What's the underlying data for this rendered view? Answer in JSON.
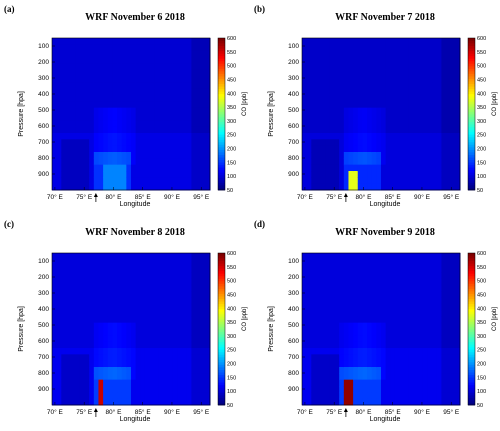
{
  "panels": [
    {
      "letter": "(a)",
      "title": "WRF November 6 2018"
    },
    {
      "letter": "(b)",
      "title": "WRF November 7 2018"
    },
    {
      "letter": "(c)",
      "title": "WRF November 8 2018"
    },
    {
      "letter": "(d)",
      "title": "WRF November 9 2018"
    }
  ],
  "axes": {
    "ylabel": "Pressure [hpa]",
    "xlabel": "Longitude",
    "cblabel": "CO [ppb]"
  },
  "chart_data": [
    {
      "type": "heatmap",
      "title": "WRF November 6 2018",
      "x_ticks": [
        "70° E",
        "75° E",
        "80° E",
        "85° E",
        "90° E",
        "95° E"
      ],
      "x_tick_values": [
        70,
        75,
        80,
        85,
        90,
        95
      ],
      "xlim": [
        69.5,
        96.5
      ],
      "y_ticks": [
        "100",
        "200",
        "300",
        "400",
        "500",
        "600",
        "700",
        "800",
        "900"
      ],
      "y_tick_values": [
        100,
        200,
        300,
        400,
        500,
        600,
        700,
        800,
        900
      ],
      "ylim": [
        1000,
        50
      ],
      "colorbar_ticks": [
        "50",
        "100",
        "150",
        "200",
        "250",
        "300",
        "350",
        "400",
        "450",
        "500",
        "550",
        "600"
      ],
      "clim": [
        50,
        600
      ],
      "colormap": [
        "#00007f",
        "#0000ff",
        "#007fff",
        "#00ffff",
        "#7fff7f",
        "#ffff00",
        "#ff7f00",
        "#ff0000",
        "#7f0000"
      ],
      "marker_arrow_lon": 77,
      "peak": {
        "lon_range": [
          78,
          82
        ],
        "pressure_range": [
          850,
          1000
        ],
        "value_ppb": 190
      },
      "background_ppb": 95
    },
    {
      "type": "heatmap",
      "title": "WRF November 7 2018",
      "x_ticks": [
        "70° E",
        "75° E",
        "80° E",
        "85° E",
        "90° E",
        "95° E"
      ],
      "xlim": [
        69.5,
        96.5
      ],
      "y_ticks": [
        "100",
        "200",
        "300",
        "400",
        "500",
        "600",
        "700",
        "800",
        "900"
      ],
      "ylim": [
        1000,
        50
      ],
      "colorbar_ticks": [
        "50",
        "100",
        "150",
        "200",
        "250",
        "300",
        "350",
        "400",
        "450",
        "500",
        "550",
        "600"
      ],
      "clim": [
        50,
        600
      ],
      "marker_arrow_lon": 77,
      "peak": {
        "lon_range": [
          77.5,
          79
        ],
        "pressure_range": [
          880,
          1000
        ],
        "value_ppb": 380
      },
      "background_ppb": 90
    },
    {
      "type": "heatmap",
      "title": "WRF November 8 2018",
      "x_ticks": [
        "70° E",
        "75° E",
        "80° E",
        "85° E",
        "90° E",
        "95° E"
      ],
      "xlim": [
        69.5,
        96.5
      ],
      "y_ticks": [
        "100",
        "200",
        "300",
        "400",
        "500",
        "600",
        "700",
        "800",
        "900"
      ],
      "ylim": [
        1000,
        50
      ],
      "colorbar_ticks": [
        "50",
        "100",
        "150",
        "200",
        "250",
        "300",
        "350",
        "400",
        "450",
        "500",
        "550",
        "600"
      ],
      "clim": [
        50,
        600
      ],
      "marker_arrow_lon": 77,
      "peak": {
        "lon_range": [
          77.5,
          78
        ],
        "pressure_range": [
          830,
          1000
        ],
        "value_ppb": 560
      },
      "background_ppb": 100
    },
    {
      "type": "heatmap",
      "title": "WRF November 9 2018",
      "x_ticks": [
        "70° E",
        "75° E",
        "80° E",
        "85° E",
        "90° E",
        "95° E"
      ],
      "xlim": [
        69.5,
        96.5
      ],
      "y_ticks": [
        "100",
        "200",
        "300",
        "400",
        "500",
        "600",
        "700",
        "800",
        "900"
      ],
      "ylim": [
        1000,
        50
      ],
      "colorbar_ticks": [
        "50",
        "100",
        "150",
        "200",
        "250",
        "300",
        "350",
        "400",
        "450",
        "500",
        "550",
        "600"
      ],
      "clim": [
        50,
        600
      ],
      "marker_arrow_lon": 77,
      "peak": {
        "lon_range": [
          77,
          78.5
        ],
        "pressure_range": [
          850,
          1000
        ],
        "value_ppb": 590
      },
      "background_ppb": 100
    }
  ]
}
